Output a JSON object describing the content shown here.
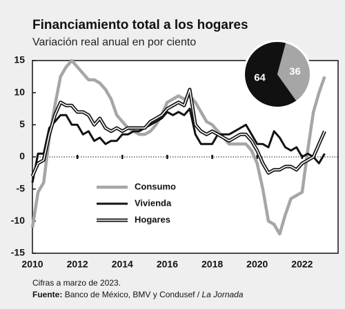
{
  "chart_data": [
    {
      "type": "line",
      "title": "Financiamiento total a los hogares",
      "subtitle": "Variación real anual en por ciento",
      "x": [
        2010,
        2010.25,
        2010.5,
        2010.75,
        2011,
        2011.25,
        2011.5,
        2011.75,
        2012,
        2012.25,
        2012.5,
        2012.75,
        2013,
        2013.25,
        2013.5,
        2013.75,
        2014,
        2014.25,
        2014.5,
        2014.75,
        2015,
        2015.25,
        2015.5,
        2015.75,
        2016,
        2016.25,
        2016.5,
        2016.75,
        2017,
        2017.25,
        2017.5,
        2017.75,
        2018,
        2018.25,
        2018.5,
        2018.75,
        2019,
        2019.25,
        2019.5,
        2019.75,
        2020,
        2020.25,
        2020.5,
        2020.75,
        2021,
        2021.25,
        2021.5,
        2021.75,
        2022,
        2022.25,
        2022.5,
        2022.75,
        2023
      ],
      "series": [
        {
          "name": "Consumo",
          "color": "#a6a6a6",
          "line_style": "single",
          "values": [
            -11,
            -5.5,
            -4,
            3,
            8,
            12.5,
            14,
            15,
            14,
            13,
            12,
            12,
            11.5,
            10.5,
            9,
            6.5,
            5.5,
            4.5,
            4,
            3.5,
            3.5,
            4,
            5,
            6.5,
            8.5,
            9,
            9.5,
            9,
            9.5,
            8.5,
            7,
            5.5,
            5,
            4,
            3,
            2,
            2,
            2,
            2,
            1,
            -1,
            -5,
            -10,
            -10.5,
            -12,
            -9,
            -6.5,
            -6,
            -5.5,
            1,
            7,
            10,
            12.5
          ]
        },
        {
          "name": "Vivienda",
          "color": "#111111",
          "line_style": "single",
          "values": [
            -4,
            0.5,
            0.5,
            4.5,
            5.5,
            6.5,
            6.5,
            5,
            5,
            3.5,
            4,
            2.5,
            3,
            2,
            2.5,
            2.5,
            3.5,
            3.5,
            4,
            4,
            4.5,
            5,
            5.5,
            6,
            7,
            6.5,
            7,
            6.5,
            7.5,
            3.5,
            2,
            2,
            2,
            3.5,
            3.5,
            3.5,
            4,
            4.5,
            5,
            3.5,
            2,
            2,
            1.5,
            4,
            3,
            1.5,
            1,
            1.5,
            0,
            0.5,
            0,
            -1,
            0.5
          ]
        },
        {
          "name": "Hogares",
          "color": "#111111",
          "line_style": "double",
          "values": [
            -3,
            -1,
            -0.5,
            3.5,
            6.5,
            8.5,
            8,
            8,
            7,
            7,
            6.5,
            5,
            6,
            4.5,
            4,
            4.5,
            4,
            4.5,
            4.5,
            4.5,
            4.5,
            5.5,
            6,
            6.5,
            7.5,
            8,
            8.5,
            8,
            10.5,
            5,
            4,
            3.5,
            4,
            3.5,
            3,
            2.5,
            3,
            3.5,
            3.5,
            2.5,
            1,
            -1,
            -2.5,
            -2,
            -2,
            -1.5,
            -1.5,
            -2,
            -1,
            -0.5,
            0,
            2,
            4
          ]
        }
      ],
      "xlim": [
        2010,
        2023.6
      ],
      "xticks": [
        2010,
        2012,
        2014,
        2016,
        2018,
        2020,
        2022
      ],
      "ylim": [
        -15,
        15
      ],
      "yticks": [
        15,
        10,
        5,
        0,
        -5,
        -10,
        -15
      ],
      "grid": false,
      "note": "Cifras a marzo de 2023.",
      "source_label": "Fuente:",
      "source_text": "Banco de México, BMV y Condusef /",
      "source_italic": "La Jornada"
    },
    {
      "type": "pie",
      "values": [
        64,
        36
      ],
      "colors": [
        "#111111",
        "#a6a6a6"
      ]
    }
  ]
}
